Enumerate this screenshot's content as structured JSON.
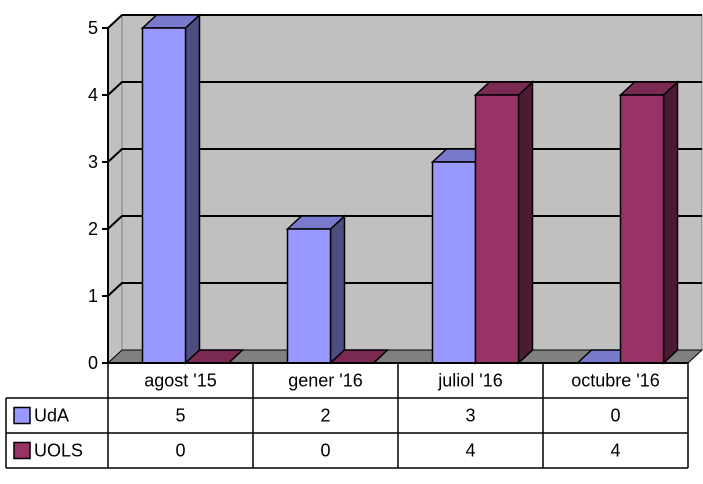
{
  "chart_data": {
    "type": "bar",
    "categories": [
      "agost '15",
      "gener '16",
      "juliol '16",
      "octubre '16"
    ],
    "series": [
      {
        "name": "UdA",
        "values": [
          5,
          2,
          3,
          0
        ],
        "color": "#9999ff",
        "side_color": "#4d4d80",
        "top_color": "#7a7acc"
      },
      {
        "name": "UOLS",
        "values": [
          0,
          0,
          4,
          4
        ],
        "color": "#993366",
        "side_color": "#4d1a33",
        "top_color": "#7a2952"
      }
    ],
    "ylim": [
      0,
      5
    ],
    "yticks": [
      "0",
      "1",
      "2",
      "3",
      "4",
      "5"
    ],
    "grid": true,
    "legend_placement": "data-table",
    "data_table": true,
    "plot_background": "#c0c0c0",
    "title": "",
    "xlabel": "",
    "ylabel": ""
  }
}
